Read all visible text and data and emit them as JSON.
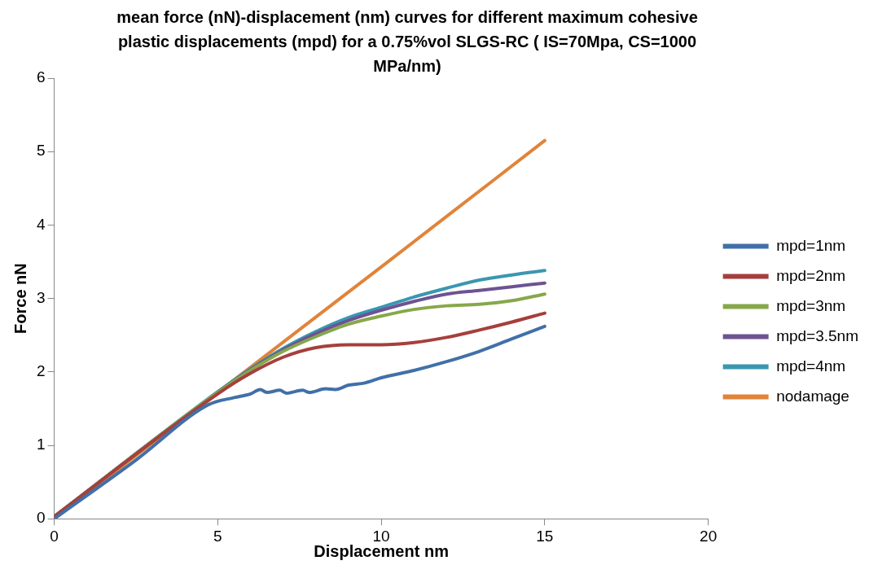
{
  "chart_data": {
    "type": "line",
    "title": "mean force (nN)-displacement (nm) curves for different maximum cohesive plastic displacements (mpd) for a 0.75%vol SLGS-RC ( IS=70Mpa, CS=1000 MPa/nm)",
    "xlabel": "Displacement nm",
    "ylabel": "Force nN",
    "xlim": [
      0,
      20
    ],
    "xticks": [
      0,
      5,
      10,
      15,
      20
    ],
    "ylim": [
      0,
      6
    ],
    "yticks": [
      0,
      1,
      2,
      3,
      4,
      5,
      6
    ],
    "grid": false,
    "legend": "right",
    "marker": "none",
    "line_style": "solid",
    "series": [
      {
        "name": "mpd=1nm",
        "color": "#4170a8",
        "x": [
          0,
          2.5,
          4.7,
          5.5,
          6,
          6.3,
          6.5,
          6.9,
          7.1,
          7.6,
          7.8,
          8.3,
          8.6,
          9,
          9.5,
          10,
          11,
          12,
          13,
          14,
          15
        ],
        "values": [
          0,
          0.8,
          1.55,
          1.65,
          1.7,
          1.76,
          1.72,
          1.75,
          1.71,
          1.75,
          1.72,
          1.77,
          1.76,
          1.82,
          1.85,
          1.92,
          2.02,
          2.14,
          2.28,
          2.45,
          2.62
        ]
      },
      {
        "name": "mpd=2nm",
        "color": "#a63f3c",
        "x": [
          0,
          5,
          6,
          7,
          8,
          9,
          10,
          11,
          12,
          13,
          14,
          15
        ],
        "values": [
          0.03,
          1.7,
          1.98,
          2.2,
          2.33,
          2.37,
          2.37,
          2.4,
          2.47,
          2.57,
          2.68,
          2.8
        ]
      },
      {
        "name": "mpd=3nm",
        "color": "#86a84a",
        "x": [
          0,
          5,
          6,
          7,
          8,
          9,
          10,
          11,
          12,
          13,
          14,
          15
        ],
        "values": [
          0.03,
          1.72,
          2.02,
          2.28,
          2.48,
          2.65,
          2.76,
          2.85,
          2.9,
          2.92,
          2.97,
          3.06
        ]
      },
      {
        "name": "mpd=3.5nm",
        "color": "#6d5392",
        "x": [
          0,
          5,
          6,
          7,
          8,
          9,
          10,
          11,
          12,
          13,
          14,
          15
        ],
        "values": [
          0.03,
          1.72,
          2.03,
          2.3,
          2.52,
          2.7,
          2.84,
          2.96,
          3.06,
          3.11,
          3.16,
          3.21
        ]
      },
      {
        "name": "mpd=4nm",
        "color": "#3a97b0",
        "x": [
          0,
          5,
          6,
          7,
          8,
          9,
          10,
          11,
          12,
          13,
          14,
          15
        ],
        "values": [
          0.03,
          1.73,
          2.04,
          2.32,
          2.55,
          2.74,
          2.88,
          3.02,
          3.14,
          3.25,
          3.32,
          3.38
        ]
      },
      {
        "name": "nodamage",
        "color": "#e0843a",
        "x": [
          0,
          5,
          10,
          15
        ],
        "values": [
          0,
          1.72,
          3.43,
          5.15
        ]
      }
    ]
  }
}
